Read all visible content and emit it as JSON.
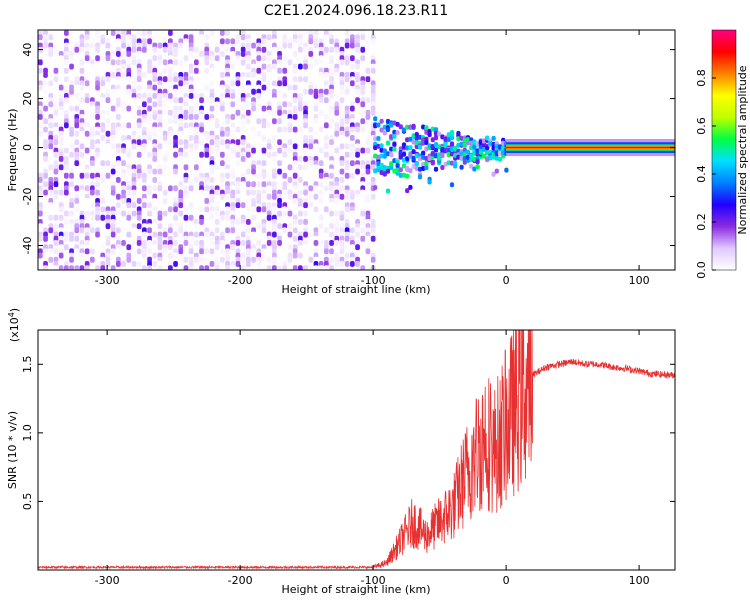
{
  "title": "C2E1.2024.096.18.23.R11",
  "chart_data": [
    {
      "type": "heatmap",
      "xlabel": "Height of straight line (km)",
      "ylabel": "Frequency (Hz)",
      "xlim": [
        -352,
        127
      ],
      "ylim": [
        -50,
        48
      ],
      "xticks": [
        -300,
        -200,
        -100,
        0,
        100
      ],
      "yticks": [
        -40,
        -20,
        0,
        20,
        40
      ],
      "colorbar": {
        "label": "Normalized spectral amplitude",
        "range": [
          0,
          1
        ],
        "ticks": [
          0.0,
          0.2,
          0.4,
          0.6,
          0.8
        ],
        "tick_labels": [
          "0.0",
          "0.2",
          "0.4",
          "0.6",
          "0.8"
        ],
        "colors": [
          "#ffffff",
          "#e0c8ff",
          "#8a2be2",
          "#2000ff",
          "#0080ff",
          "#00e0ff",
          "#00ff40",
          "#c0ff00",
          "#ffff00",
          "#ff8000",
          "#ff0000",
          "#ff0080"
        ]
      },
      "regions": [
        {
          "x_range": [
            -352,
            -100
          ],
          "description": "noise",
          "amplitude": [
            0.0,
            0.25
          ],
          "freq_range": [
            -50,
            48
          ]
        },
        {
          "x_range": [
            -100,
            0
          ],
          "description": "spread signal",
          "amplitude": [
            0.1,
            0.55
          ],
          "freq_range": [
            -20,
            15
          ]
        },
        {
          "x_range": [
            0,
            127
          ],
          "description": "narrow tone",
          "amplitude": [
            0.85,
            1.0
          ],
          "freq_range": [
            -2,
            2
          ]
        }
      ]
    },
    {
      "type": "line",
      "xlabel": "Height of straight line (km)",
      "ylabel": "SNR (10 * v/v)",
      "scale_label": "(x10",
      "scale_exp": "4",
      "scale_close": ")",
      "xlim": [
        -352,
        127
      ],
      "ylim": [
        0,
        1.75
      ],
      "xticks": [
        -300,
        -200,
        -100,
        0,
        100
      ],
      "yticks": [
        0.5,
        1.0,
        1.5
      ],
      "ytick_labels": [
        "0.5",
        "1.0",
        "1.5"
      ],
      "color": "#e83030",
      "series": [
        {
          "x": [
            -352,
            -100,
            -90,
            -80,
            -70,
            -60,
            -50,
            -40,
            -30,
            -20,
            -15,
            -10,
            -5,
            0,
            10,
            20,
            30,
            40,
            50,
            60,
            70,
            80,
            90,
            100,
            110,
            127
          ],
          "values": [
            0.02,
            0.02,
            0.05,
            0.2,
            0.35,
            0.25,
            0.35,
            0.45,
            0.7,
            0.9,
            1.0,
            0.85,
            0.95,
            1.05,
            1.25,
            1.42,
            1.48,
            1.5,
            1.52,
            1.5,
            1.5,
            1.48,
            1.47,
            1.45,
            1.43,
            1.42
          ]
        }
      ]
    }
  ]
}
